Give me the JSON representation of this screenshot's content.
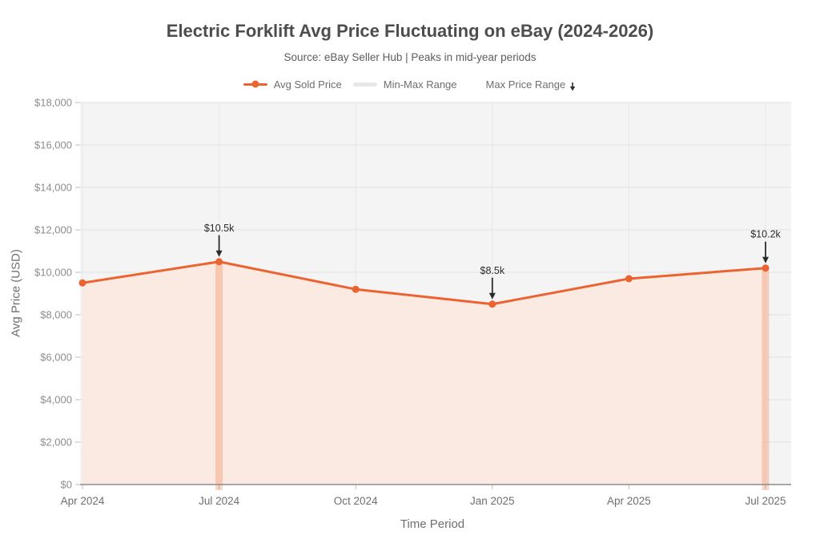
{
  "header": {
    "title": "Electric Forklift Avg Price Fluctuating on eBay (2024-2026)",
    "subtitle": "Source: eBay Seller Hub | Peaks in mid-year periods"
  },
  "legend": {
    "items": [
      {
        "label": "Avg Sold Price",
        "swatch": "line-dot",
        "color": "#EB6330"
      },
      {
        "label": "Min-Max Range",
        "swatch": "band",
        "color": "#E7E7E7"
      },
      {
        "label": "Max Price Range",
        "swatch": "arrow-marker",
        "color": "#2F2F2F"
      }
    ]
  },
  "chart_data": {
    "type": "line",
    "title": "Electric Forklift Avg Price Fluctuating on eBay (2024-2026)",
    "subtitle": "Source: eBay Seller Hub | Peaks in mid-year periods",
    "xlabel": "Time Period",
    "ylabel": "Avg Price (USD)",
    "categories": [
      "Apr 2024",
      "Jul 2024",
      "Oct 2024",
      "Jan 2025",
      "Apr 2025",
      "Jul 2025"
    ],
    "series": [
      {
        "name": "Avg Sold Price",
        "values": [
          9500,
          10500,
          9200,
          8500,
          9700,
          10200
        ]
      }
    ],
    "ylim": [
      0,
      18000
    ],
    "ytick_step": 2000,
    "ytick_labels": [
      "$0",
      "$2,000",
      "$4,000",
      "$6,000",
      "$8,000",
      "$10,000",
      "$12,000",
      "$14,000",
      "$16,000",
      "$18,000"
    ],
    "grid": true,
    "area_fill": true,
    "legend_position": "top",
    "annotations": [
      {
        "index": 1,
        "category": "Jul 2024",
        "label": "$10.5k",
        "value": 10500
      },
      {
        "index": 3,
        "category": "Jan 2025",
        "label": "$8.5k",
        "value": 8500
      },
      {
        "index": 5,
        "category": "Jul 2025",
        "label": "$10.2k",
        "value": 10200
      }
    ],
    "highlight_bands": [
      {
        "index": 1,
        "category": "Jul 2024"
      },
      {
        "index": 5,
        "category": "Jul 2025"
      }
    ]
  },
  "colors": {
    "line": "#EB6330",
    "area_fill": "#FBEAE1",
    "band": "rgba(238,108,58,0.28)",
    "plot_bg": "#F4F4F4",
    "grid_h": "#E2E2E2",
    "grid_v": "#E7E7E7",
    "axis": "#8C8C8C",
    "tick": "#BDBDBD",
    "y_tick_label": "#8D8D8D",
    "x_tick_label": "#6F6F6F",
    "annotation": "#2B2B2B",
    "title": "#4D4D4D",
    "subtitle": "#5D5D5D",
    "legend_text": "#6E6E6E"
  }
}
